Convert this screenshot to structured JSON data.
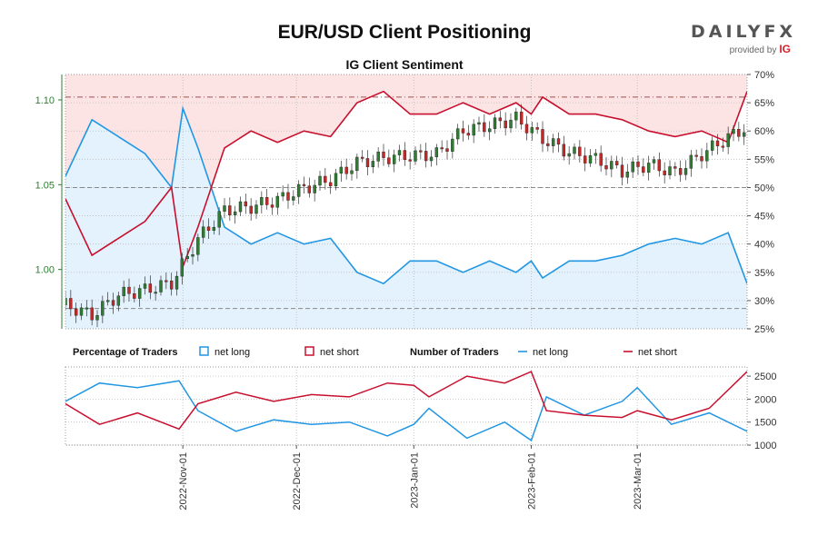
{
  "header": {
    "title": "EUR/USD Client Positioning",
    "subtitle": "IG Client Sentiment",
    "logo_word": "DAILYFX",
    "logo_provided": "provided by",
    "logo_brand": "IG"
  },
  "legend": {
    "percentage_heading": "Percentage of Traders",
    "number_heading": "Number of Traders",
    "net_long": "net long",
    "net_short": "net short"
  },
  "colors": {
    "long": "#2196e3",
    "short": "#c8102e",
    "long_fill": "#e3f2fd",
    "short_fill": "#fce4e4",
    "candle_up": "#2e7d32",
    "candle_down": "#c62828",
    "price_axis": "#2e7d32"
  },
  "chart_data": [
    {
      "type": "candlestick",
      "title": "EUR/USD Client Positioning",
      "subtitle": "IG Client Sentiment",
      "x_range": [
        "2022-10-01",
        "2023-03-30"
      ],
      "x_ticks": [
        "2022-Nov-01",
        "2022-Dec-01",
        "2023-Jan-01",
        "2023-Feb-01",
        "2023-Mar-01"
      ],
      "y_left_ticks": [
        "1.00",
        "1.05",
        "1.10"
      ],
      "y_left_range": [
        0.965,
        1.115
      ],
      "y_right_ticks": [
        "25%",
        "30%",
        "35%",
        "40%",
        "45%",
        "50%",
        "55%",
        "60%",
        "65%",
        "70%"
      ],
      "y_right_range": [
        25,
        70
      ],
      "reference_lines": {
        "dashed_gray_50pct": 50,
        "dashed_gray_price": 0.977,
        "dashdot_red_pct": 66
      },
      "close_series": {
        "x": [
          "2022-10-01",
          "2022-10-08",
          "2022-10-15",
          "2022-10-22",
          "2022-10-29",
          "2022-11-05",
          "2022-11-12",
          "2022-11-19",
          "2022-11-26",
          "2022-12-03",
          "2022-12-10",
          "2022-12-17",
          "2022-12-24",
          "2022-12-31",
          "2023-01-07",
          "2023-01-14",
          "2023-01-21",
          "2023-01-28",
          "2023-02-04",
          "2023-02-11",
          "2023-02-18",
          "2023-02-25",
          "2023-03-04",
          "2023-03-11",
          "2023-03-18",
          "2023-03-25",
          "2023-03-30"
        ],
        "close": [
          0.979,
          0.973,
          0.985,
          0.988,
          0.992,
          1.018,
          1.035,
          1.037,
          1.041,
          1.048,
          1.053,
          1.063,
          1.066,
          1.067,
          1.068,
          1.082,
          1.085,
          1.089,
          1.077,
          1.069,
          1.065,
          1.058,
          1.062,
          1.057,
          1.068,
          1.078,
          1.084
        ]
      },
      "net_long_pct": {
        "x": [
          "2022-10-01",
          "2022-10-08",
          "2022-10-15",
          "2022-10-22",
          "2022-10-29",
          "2022-11-01",
          "2022-11-05",
          "2022-11-12",
          "2022-11-19",
          "2022-11-26",
          "2022-12-03",
          "2022-12-10",
          "2022-12-17",
          "2022-12-24",
          "2022-12-31",
          "2023-01-07",
          "2023-01-14",
          "2023-01-21",
          "2023-01-28",
          "2023-02-01",
          "2023-02-04",
          "2023-02-11",
          "2023-02-18",
          "2023-02-25",
          "2023-03-04",
          "2023-03-11",
          "2023-03-18",
          "2023-03-25",
          "2023-03-30"
        ],
        "values": [
          52,
          62,
          59,
          56,
          50,
          64,
          57,
          43,
          40,
          42,
          40,
          41,
          35,
          33,
          37,
          37,
          35,
          37,
          35,
          37,
          34,
          37,
          37,
          38,
          40,
          41,
          40,
          42,
          33
        ]
      },
      "net_short_pct": {
        "x": [
          "2022-10-01",
          "2022-10-08",
          "2022-10-15",
          "2022-10-22",
          "2022-10-29",
          "2022-11-01",
          "2022-11-05",
          "2022-11-12",
          "2022-11-19",
          "2022-11-26",
          "2022-12-03",
          "2022-12-10",
          "2022-12-17",
          "2022-12-24",
          "2022-12-31",
          "2023-01-07",
          "2023-01-14",
          "2023-01-21",
          "2023-01-28",
          "2023-02-01",
          "2023-02-04",
          "2023-02-11",
          "2023-02-18",
          "2023-02-25",
          "2023-03-04",
          "2023-03-11",
          "2023-03-18",
          "2023-03-25",
          "2023-03-30"
        ],
        "values": [
          48,
          38,
          41,
          44,
          50,
          36,
          43,
          57,
          60,
          58,
          60,
          59,
          65,
          67,
          63,
          63,
          65,
          63,
          65,
          63,
          66,
          63,
          63,
          62,
          60,
          59,
          60,
          58,
          67
        ]
      }
    },
    {
      "type": "line",
      "title": "Number of Traders",
      "y_ticks": [
        "1000",
        "1500",
        "2000",
        "2500"
      ],
      "ylim": [
        1000,
        2700
      ],
      "series": [
        {
          "name": "net long",
          "x": [
            "2022-10-01",
            "2022-10-10",
            "2022-10-20",
            "2022-10-31",
            "2022-11-05",
            "2022-11-15",
            "2022-11-25",
            "2022-12-05",
            "2022-12-15",
            "2022-12-25",
            "2023-01-01",
            "2023-01-05",
            "2023-01-15",
            "2023-01-25",
            "2023-02-01",
            "2023-02-05",
            "2023-02-15",
            "2023-02-25",
            "2023-03-01",
            "2023-03-10",
            "2023-03-20",
            "2023-03-30"
          ],
          "values": [
            1950,
            2350,
            2250,
            2400,
            1750,
            1300,
            1550,
            1450,
            1500,
            1200,
            1450,
            1800,
            1150,
            1500,
            1100,
            2050,
            1650,
            1950,
            2250,
            1450,
            1700,
            1300
          ]
        },
        {
          "name": "net short",
          "x": [
            "2022-10-01",
            "2022-10-10",
            "2022-10-20",
            "2022-10-31",
            "2022-11-05",
            "2022-11-15",
            "2022-11-25",
            "2022-12-05",
            "2022-12-15",
            "2022-12-25",
            "2023-01-01",
            "2023-01-05",
            "2023-01-15",
            "2023-01-25",
            "2023-02-01",
            "2023-02-05",
            "2023-02-15",
            "2023-02-25",
            "2023-03-01",
            "2023-03-10",
            "2023-03-20",
            "2023-03-30"
          ],
          "values": [
            1900,
            1450,
            1700,
            1350,
            1900,
            2150,
            1950,
            2100,
            2050,
            2350,
            2300,
            2050,
            2500,
            2350,
            2600,
            1750,
            1650,
            1600,
            1750,
            1550,
            1800,
            2600
          ]
        }
      ]
    }
  ]
}
